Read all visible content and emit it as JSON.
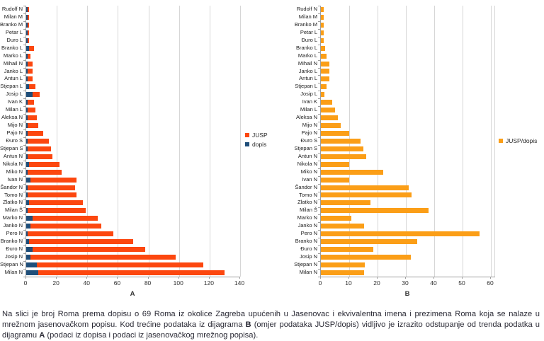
{
  "caption": {
    "part1": "Na slici je broj Roma prema dopisu o 69 Roma iz okolice Zagreba upućenih u Jasenovac i ekvivalentna imena i prezimena Roma koja se nalaze u mrežnom jasenovačkom popisu. Kod trećine podataka iz dijagrama ",
    "diagram_b_label": "B",
    "part2": " (omjer podataka JUSP/dopis) vidljivo je izrazito odstupanje od trenda podatka u dijagramu ",
    "diagram_a_label": "A",
    "part3": " (podaci iz dopisa i podaci iz jasenovačkog mrežnog popisa)."
  },
  "colors": {
    "jusp_bar": "#fc470f",
    "dopis_bar": "#1f4e79",
    "ratio_bar": "#fb9e17",
    "gridline": "#d6d6d6",
    "axis_line": "#9e9e9e",
    "text": "#2a2a35"
  },
  "chart_data": [
    {
      "type": "bar",
      "orientation": "horizontal",
      "stacked": true,
      "title": "",
      "xlabel": "A",
      "ylabel": "",
      "xlim": [
        0,
        140
      ],
      "xticks": [
        0,
        20,
        40,
        60,
        80,
        100,
        120,
        140
      ],
      "grid": true,
      "legend_position": "right",
      "legend_order": [
        "JUSP",
        "dopis"
      ],
      "stack_note": "dopis (blue) drawn at base, JUSP (orange) stacked after it",
      "categories": [
        "Rudolf N",
        "Milan M",
        "Branko M",
        "Petar L",
        "Đuro L",
        "Branko L",
        "Marko L",
        "Mihail N",
        "Janko L",
        "Antun L",
        "Stjepan L",
        "Josip L",
        "Ivan K",
        "Milan L",
        "Aleksa N",
        "Mijo N",
        "Pajo N",
        "Đuro S",
        "Stjepan S",
        "Antun N",
        "Nikola N",
        "Miko N",
        "Ivan N",
        "Šandor N",
        "Tomo N",
        "Zlatko N",
        "Milan Š",
        "Marko N",
        "Janko N",
        "Pero N",
        "Branko N",
        "Đuro N",
        "Josip N",
        "Stjepan N",
        "Milan N"
      ],
      "series": [
        {
          "name": "JUSP",
          "color": "#fc470f",
          "values": [
            1,
            1,
            1,
            1,
            1,
            3,
            2,
            3,
            3,
            3,
            4,
            5,
            4,
            5,
            6,
            7,
            10,
            14,
            15,
            16,
            20,
            22,
            30,
            31,
            32,
            35,
            38,
            43,
            46,
            56,
            68,
            74,
            95,
            109,
            122
          ]
        },
        {
          "name": "dopis",
          "color": "#1f4e79",
          "values": [
            1,
            1,
            1,
            1,
            1,
            2,
            1,
            1,
            1,
            1,
            2,
            4,
            1,
            1,
            1,
            1,
            1,
            1,
            1,
            1,
            2,
            1,
            3,
            1,
            1,
            2,
            1,
            4,
            3,
            1,
            2,
            4,
            3,
            7,
            8
          ]
        }
      ]
    },
    {
      "type": "bar",
      "orientation": "horizontal",
      "stacked": false,
      "title": "",
      "xlabel": "B",
      "ylabel": "",
      "xlim": [
        0,
        61.5
      ],
      "xticks": [
        0,
        10,
        20,
        30,
        40,
        50,
        60
      ],
      "grid": true,
      "legend_position": "right",
      "categories": [
        "Rudolf N",
        "Milan M",
        "Branko M",
        "Petar L",
        "Đuro L",
        "Branko L",
        "Marko L",
        "Mihail N",
        "Janko L",
        "Antun L",
        "Stjepan L",
        "Josip L",
        "Ivan K",
        "Milan L",
        "Aleksa N",
        "Mijo N",
        "Pajo N",
        "Đuro S",
        "Stjepan S",
        "Antun N",
        "Nikola N",
        "Miko N",
        "Ivan N",
        "Šandor N",
        "Tomo N",
        "Zlatko N",
        "Milan Š",
        "Marko N",
        "Janko N",
        "Pero N",
        "Branko N",
        "Đuro N",
        "Josip N",
        "Stjepan N",
        "Milan N"
      ],
      "series": [
        {
          "name": "JUSP/dopis",
          "color": "#fb9e17",
          "values": [
            1,
            1,
            1,
            1,
            1,
            1.5,
            2,
            3,
            3,
            3,
            2,
            1.25,
            4,
            5,
            6,
            7,
            10,
            14,
            15,
            16,
            10,
            22,
            10,
            31,
            32,
            17.5,
            38,
            10.75,
            15.33,
            56,
            34,
            18.5,
            31.67,
            15.57,
            15.25
          ]
        }
      ]
    }
  ]
}
